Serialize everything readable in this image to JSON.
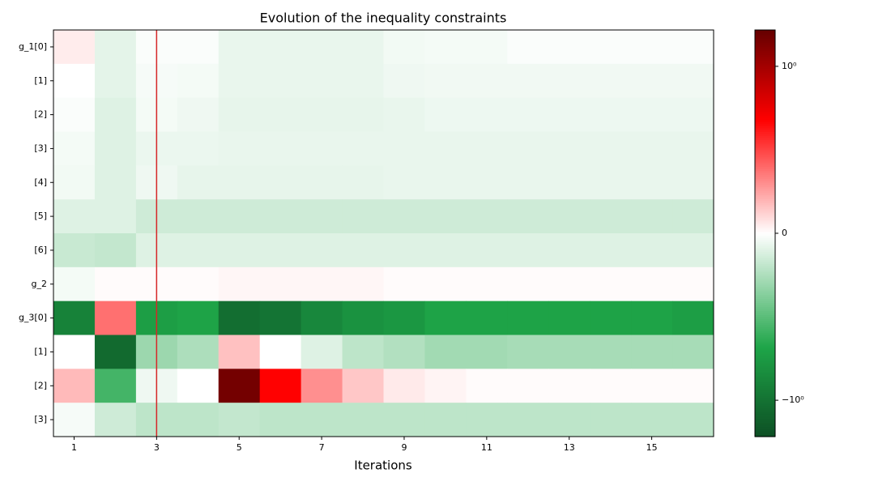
{
  "chart_data": {
    "type": "heatmap",
    "title": "Evolution of the inequality constraints",
    "x_label": "Iterations",
    "x": [
      1,
      2,
      3,
      4,
      5,
      6,
      7,
      8,
      9,
      10,
      11,
      12,
      13,
      14,
      15,
      16
    ],
    "xlim": [
      0.5,
      16.5
    ],
    "xticks": [
      1,
      3,
      5,
      7,
      9,
      11,
      13,
      15
    ],
    "categories": [
      "g_1[0]",
      "[1]",
      "[2]",
      "[3]",
      "[4]",
      "[5]",
      "[6]",
      "g_2",
      "g_3[0]",
      "[1]",
      "[2]",
      "[3]"
    ],
    "values": [
      [
        0.0015,
        -0.0025,
        -0.0005,
        -0.0005,
        -0.002,
        -0.002,
        -0.002,
        -0.002,
        -0.0012,
        -0.001,
        -0.001,
        -0.0005,
        -0.0005,
        -0.0005,
        -0.0005,
        -0.0005
      ],
      [
        0,
        -0.0025,
        -0.0008,
        -0.001,
        -0.002,
        -0.002,
        -0.002,
        -0.002,
        -0.0015,
        -0.0013,
        -0.0013,
        -0.0013,
        -0.0013,
        -0.0013,
        -0.0013,
        -0.0013
      ],
      [
        -0.0005,
        -0.003,
        -0.001,
        -0.0015,
        -0.0022,
        -0.0022,
        -0.0022,
        -0.0022,
        -0.002,
        -0.0016,
        -0.0016,
        -0.0016,
        -0.0016,
        -0.0016,
        -0.0016,
        -0.0016
      ],
      [
        -0.001,
        -0.003,
        -0.0018,
        -0.0018,
        -0.002,
        -0.002,
        -0.002,
        -0.002,
        -0.002,
        -0.002,
        -0.002,
        -0.002,
        -0.002,
        -0.002,
        -0.002,
        -0.002
      ],
      [
        -0.0012,
        -0.003,
        -0.0015,
        -0.0022,
        -0.0022,
        -0.0022,
        -0.0022,
        -0.0022,
        -0.002,
        -0.002,
        -0.002,
        -0.002,
        -0.002,
        -0.002,
        -0.002,
        -0.002
      ],
      [
        -0.003,
        -0.003,
        -0.0045,
        -0.0045,
        -0.0045,
        -0.0045,
        -0.0045,
        -0.0045,
        -0.0045,
        -0.0045,
        -0.0045,
        -0.0045,
        -0.0045,
        -0.0045,
        -0.0045,
        -0.0045
      ],
      [
        -0.005,
        -0.0055,
        -0.003,
        -0.003,
        -0.003,
        -0.003,
        -0.003,
        -0.003,
        -0.003,
        -0.003,
        -0.003,
        -0.003,
        -0.003,
        -0.003,
        -0.003,
        -0.003
      ],
      [
        -0.001,
        0.0003,
        0.0003,
        0.0003,
        0.0007,
        0.0007,
        0.0007,
        0.0007,
        0.0003,
        0.0003,
        0.0003,
        0.0003,
        0.0003,
        0.0003,
        0.0003,
        0.0003
      ],
      [
        -0.5,
        0.014,
        -0.15,
        -0.12,
        -1.2,
        -0.9,
        -0.4,
        -0.25,
        -0.2,
        -0.12,
        -0.12,
        -0.12,
        -0.12,
        -0.12,
        -0.12,
        -0.15
      ],
      [
        0,
        -1.4,
        -0.009,
        -0.0075,
        0.005,
        0,
        -0.003,
        -0.006,
        -0.007,
        -0.0085,
        -0.0085,
        -0.008,
        -0.008,
        -0.008,
        -0.008,
        -0.008
      ],
      [
        0.0055,
        -0.05,
        -0.0015,
        0,
        3.2,
        0.11,
        0.009,
        0.0045,
        0.0017,
        0.0009,
        0.0003,
        0.0003,
        0.0003,
        0.0003,
        0.0003,
        0.0003
      ],
      [
        -0.0008,
        -0.0045,
        -0.006,
        -0.006,
        -0.0055,
        -0.006,
        -0.006,
        -0.006,
        -0.006,
        -0.006,
        -0.006,
        -0.006,
        -0.006,
        -0.006,
        -0.006,
        -0.006
      ]
    ],
    "color_scale": "symlog",
    "linthresh": 0.01,
    "clim": [
      -4.5,
      4.5
    ],
    "colormap": [
      {
        "pos": 0,
        "color": "#0d4f24"
      },
      {
        "pos": 0.22,
        "color": "#1ea548"
      },
      {
        "pos": 0.5,
        "color": "#ffffff"
      },
      {
        "pos": 0.78,
        "color": "#ff0000"
      },
      {
        "pos": 1,
        "color": "#660000"
      }
    ],
    "cticks": [
      {
        "value": 1,
        "label": "10⁰"
      },
      0,
      {
        "value": -1,
        "label": "−10⁰"
      }
    ],
    "vline": {
      "x": 3,
      "color": "#d62728"
    }
  }
}
